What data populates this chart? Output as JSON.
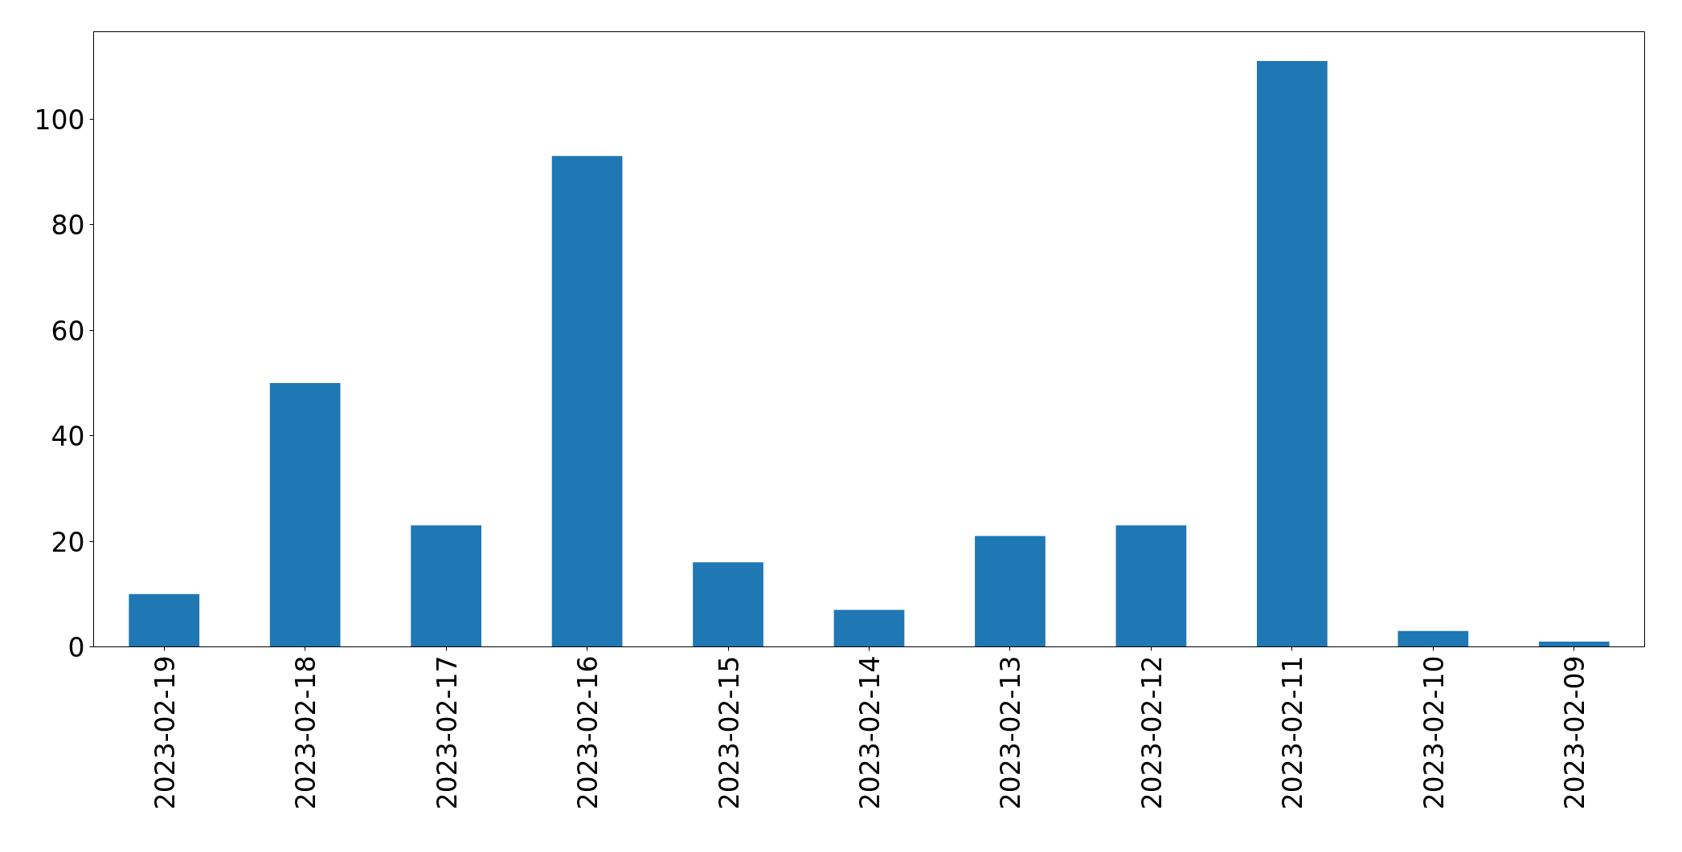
{
  "chart_data": {
    "type": "bar",
    "categories": [
      "2023-02-19",
      "2023-02-18",
      "2023-02-17",
      "2023-02-16",
      "2023-02-15",
      "2023-02-14",
      "2023-02-13",
      "2023-02-12",
      "2023-02-11",
      "2023-02-10",
      "2023-02-09"
    ],
    "values": [
      10,
      50,
      23,
      93,
      16,
      7,
      21,
      23,
      111,
      3,
      1
    ],
    "color": "#1f77b4",
    "ylim": [
      0,
      116.55
    ],
    "yticks": [
      0,
      20,
      40,
      60,
      80,
      100
    ],
    "grid": false
  }
}
